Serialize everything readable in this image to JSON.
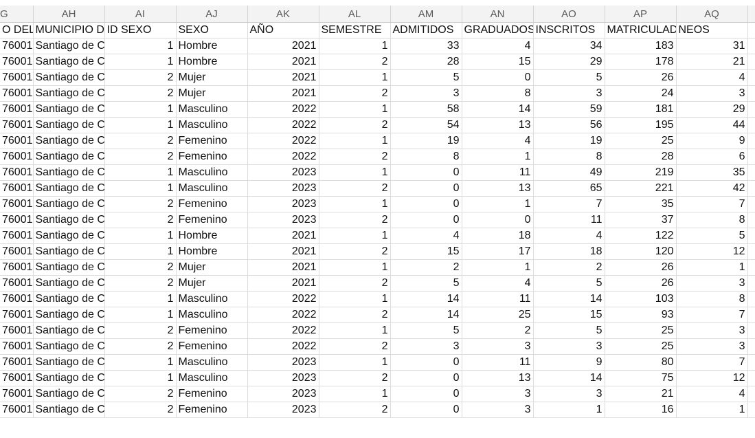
{
  "columns": [
    "G",
    "AH",
    "AI",
    "AJ",
    "AK",
    "AL",
    "AM",
    "AN",
    "AO",
    "AP",
    "AQ"
  ],
  "fields": [
    "O DEL N",
    "MUNICIPIO DE",
    "ID SEXO",
    "SEXO",
    "AÑO",
    "SEMESTRE",
    "ADMITIDOS",
    "GRADUADOS",
    "INSCRITOS",
    "MATRICULADO",
    "NEOS"
  ],
  "rows": [
    [
      "76001",
      "Santiago de Ca",
      "1",
      "Hombre",
      "2021",
      "1",
      "33",
      "4",
      "34",
      "183",
      "31"
    ],
    [
      "76001",
      "Santiago de Ca",
      "1",
      "Hombre",
      "2021",
      "2",
      "28",
      "15",
      "29",
      "178",
      "21"
    ],
    [
      "76001",
      "Santiago de Ca",
      "2",
      "Mujer",
      "2021",
      "1",
      "5",
      "0",
      "5",
      "26",
      "4"
    ],
    [
      "76001",
      "Santiago de Ca",
      "2",
      "Mujer",
      "2021",
      "2",
      "3",
      "8",
      "3",
      "24",
      "3"
    ],
    [
      "76001",
      "Santiago de Ca",
      "1",
      "Masculino",
      "2022",
      "1",
      "58",
      "14",
      "59",
      "181",
      "29"
    ],
    [
      "76001",
      "Santiago de Ca",
      "1",
      "Masculino",
      "2022",
      "2",
      "54",
      "13",
      "56",
      "195",
      "44"
    ],
    [
      "76001",
      "Santiago de Ca",
      "2",
      "Femenino",
      "2022",
      "1",
      "19",
      "4",
      "19",
      "25",
      "9"
    ],
    [
      "76001",
      "Santiago de Ca",
      "2",
      "Femenino",
      "2022",
      "2",
      "8",
      "1",
      "8",
      "28",
      "6"
    ],
    [
      "76001",
      "Santiago de Ca",
      "1",
      "Masculino",
      "2023",
      "1",
      "0",
      "11",
      "49",
      "219",
      "35"
    ],
    [
      "76001",
      "Santiago de Ca",
      "1",
      "Masculino",
      "2023",
      "2",
      "0",
      "13",
      "65",
      "221",
      "42"
    ],
    [
      "76001",
      "Santiago de Ca",
      "2",
      "Femenino",
      "2023",
      "1",
      "0",
      "1",
      "7",
      "35",
      "7"
    ],
    [
      "76001",
      "Santiago de Ca",
      "2",
      "Femenino",
      "2023",
      "2",
      "0",
      "0",
      "11",
      "37",
      "8"
    ],
    [
      "76001",
      "Santiago de Ca",
      "1",
      "Hombre",
      "2021",
      "1",
      "4",
      "18",
      "4",
      "122",
      "5"
    ],
    [
      "76001",
      "Santiago de Ca",
      "1",
      "Hombre",
      "2021",
      "2",
      "15",
      "17",
      "18",
      "120",
      "12"
    ],
    [
      "76001",
      "Santiago de Ca",
      "2",
      "Mujer",
      "2021",
      "1",
      "2",
      "1",
      "2",
      "26",
      "1"
    ],
    [
      "76001",
      "Santiago de Ca",
      "2",
      "Mujer",
      "2021",
      "2",
      "5",
      "4",
      "5",
      "26",
      "3"
    ],
    [
      "76001",
      "Santiago de Ca",
      "1",
      "Masculino",
      "2022",
      "1",
      "14",
      "11",
      "14",
      "103",
      "8"
    ],
    [
      "76001",
      "Santiago de Ca",
      "1",
      "Masculino",
      "2022",
      "2",
      "14",
      "25",
      "15",
      "93",
      "7"
    ],
    [
      "76001",
      "Santiago de Ca",
      "2",
      "Femenino",
      "2022",
      "1",
      "5",
      "2",
      "5",
      "25",
      "3"
    ],
    [
      "76001",
      "Santiago de Ca",
      "2",
      "Femenino",
      "2022",
      "2",
      "3",
      "3",
      "3",
      "25",
      "3"
    ],
    [
      "76001",
      "Santiago de Ca",
      "1",
      "Masculino",
      "2023",
      "1",
      "0",
      "11",
      "9",
      "80",
      "7"
    ],
    [
      "76001",
      "Santiago de Ca",
      "1",
      "Masculino",
      "2023",
      "2",
      "0",
      "13",
      "14",
      "75",
      "12"
    ],
    [
      "76001",
      "Santiago de Ca",
      "2",
      "Femenino",
      "2023",
      "1",
      "0",
      "3",
      "3",
      "21",
      "4"
    ],
    [
      "76001",
      "Santiago de Ca",
      "2",
      "Femenino",
      "2023",
      "2",
      "0",
      "3",
      "1",
      "16",
      "1"
    ]
  ]
}
